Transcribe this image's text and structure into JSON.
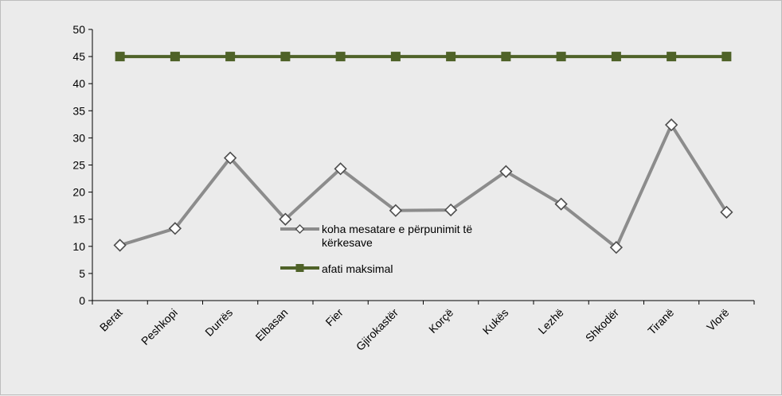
{
  "chart_data": {
    "type": "line",
    "categories": [
      "Berat",
      "Peshkopi",
      "Durrës",
      "Elbasan",
      "Fier",
      "Gjirokastër",
      "Korçë",
      "Kukës",
      "Lezhë",
      "Shkodër",
      "Tiranë",
      "Vlorë"
    ],
    "series": [
      {
        "name": "koha mesatare e përpunimit të kërkesave",
        "values": [
          10.2,
          13.3,
          26.3,
          15.0,
          24.3,
          16.6,
          16.7,
          23.8,
          17.8,
          9.8,
          32.4,
          16.3
        ],
        "color": "#8c8c8c",
        "marker": "diamond"
      },
      {
        "name": "afati maksimal",
        "values": [
          45,
          45,
          45,
          45,
          45,
          45,
          45,
          45,
          45,
          45,
          45,
          45
        ],
        "color": "#4f6228",
        "marker": "square"
      }
    ],
    "y_ticks": [
      "0",
      "5",
      "10",
      "15",
      "20",
      "25",
      "30",
      "35",
      "40",
      "45",
      "50"
    ],
    "ylim": [
      0,
      50
    ],
    "title": "",
    "xlabel": "",
    "ylabel": "",
    "grid": false,
    "legend_position": "center"
  }
}
